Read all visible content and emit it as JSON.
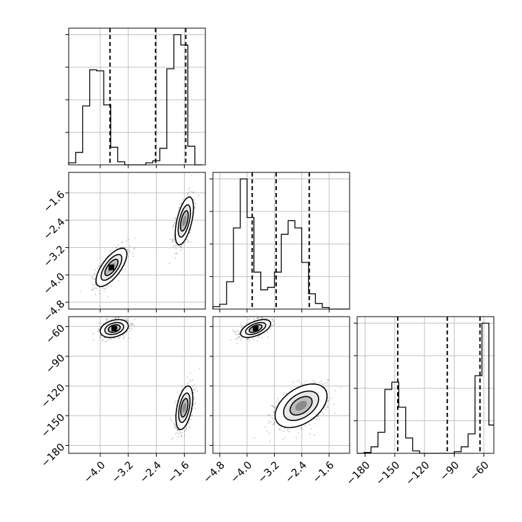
{
  "chart_data": {
    "type": "corner",
    "grid": true,
    "parameters": [
      {
        "range": [
          -4.9,
          -1.0
        ],
        "ticks": [
          -4.0,
          -3.2,
          -2.4,
          -1.6
        ],
        "tick_labels": [
          "−4.0",
          "−3.2",
          "−2.4",
          "−1.6"
        ],
        "quantiles": [
          -3.72,
          -2.42,
          -1.56
        ],
        "histogram": {
          "bin_edges": [
            -4.9,
            -4.7,
            -4.5,
            -4.3,
            -4.1,
            -3.9,
            -3.7,
            -3.5,
            -3.3,
            -3.1,
            -2.9,
            -2.7,
            -2.5,
            -2.3,
            -2.1,
            -1.9,
            -1.7,
            -1.5,
            -1.3,
            -1.1
          ],
          "counts": [
            0.02,
            0.12,
            0.57,
            0.92,
            0.91,
            0.58,
            0.17,
            0.03,
            0,
            0,
            0,
            0.02,
            0.04,
            0.16,
            0.93,
            1.26,
            1.16,
            0.18,
            0
          ]
        }
      },
      {
        "range": [
          -5.0,
          -1.0
        ],
        "ticks": [
          -4.8,
          -4.0,
          -3.2,
          -2.4,
          -1.6
        ],
        "tick_labels": [
          "−4.8",
          "−4.0",
          "−3.2",
          "−2.4",
          "−1.6"
        ],
        "quantiles": [
          -3.85,
          -3.15,
          -2.18
        ],
        "histogram": {
          "bin_edges": [
            -5.0,
            -4.8,
            -4.6,
            -4.4,
            -4.2,
            -4.0,
            -3.8,
            -3.6,
            -3.4,
            -3.2,
            -3.0,
            -2.8,
            -2.6,
            -2.4,
            -2.2,
            -2.0,
            -1.8,
            -1.6,
            -1.4,
            -1.2,
            -1.0
          ],
          "counts": [
            0.03,
            0.06,
            0.34,
            1.01,
            1.62,
            1.14,
            0.46,
            0.24,
            0.27,
            0.46,
            0.93,
            1.1,
            1.01,
            0.58,
            0.19,
            0.07,
            0.02,
            0,
            0,
            0
          ]
        }
      },
      {
        "range": [
          -188,
          -50
        ],
        "ticks": [
          -180,
          -150,
          -120,
          -90,
          -60
        ],
        "tick_labels": [
          "−180",
          "−150",
          "−120",
          "−90",
          "−60"
        ],
        "quantiles": [
          -147,
          -97,
          -64
        ],
        "histogram": {
          "bin_edges": [
            -188,
            -181,
            -174,
            -167,
            -160,
            -153,
            -146,
            -139,
            -132,
            -125,
            -118,
            -111,
            -104,
            -97,
            -90,
            -83,
            -76,
            -69,
            -62,
            -55,
            -50
          ],
          "counts": [
            0,
            0.01,
            0.08,
            0.26,
            0.79,
            0.88,
            0.57,
            0.19,
            0.03,
            0,
            0,
            0,
            0,
            0,
            0.02,
            0.08,
            0.24,
            0.96,
            1.61,
            0.35
          ]
        }
      }
    ],
    "pairs": [
      {
        "x": 0,
        "y": 1,
        "modes": [
          {
            "mean": [
              -3.68,
              -3.78
            ],
            "sd": [
              0.22,
              0.28
            ],
            "rho": 0.7,
            "weight": 0.5
          },
          {
            "mean": [
              -1.6,
              -2.42
            ],
            "sd": [
              0.13,
              0.35
            ],
            "rho": 0.55,
            "weight": 0.5
          }
        ]
      },
      {
        "x": 0,
        "y": 2,
        "modes": [
          {
            "mean": [
              -3.6,
              -62
            ],
            "sd": [
              0.2,
              4.5
            ],
            "rho": 0.3,
            "weight": 0.5
          },
          {
            "mean": [
              -1.6,
              -142
            ],
            "sd": [
              0.12,
              11
            ],
            "rho": 0.45,
            "weight": 0.5
          }
        ]
      },
      {
        "x": 1,
        "y": 2,
        "modes": [
          {
            "mean": [
              -3.75,
              -62
            ],
            "sd": [
              0.22,
              4.5
            ],
            "rho": 0.55,
            "weight": 0.5
          },
          {
            "mean": [
              -2.42,
              -140
            ],
            "sd": [
              0.38,
              11
            ],
            "rho": 0.45,
            "weight": 0.5
          }
        ]
      }
    ]
  }
}
